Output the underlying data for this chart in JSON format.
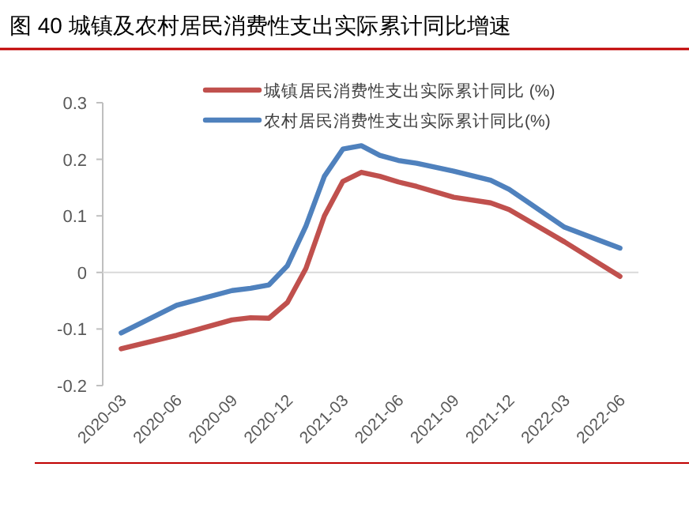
{
  "chart_data": {
    "type": "line",
    "title": "图 40  城镇及农村居民消费性支出实际累计同比增速",
    "x": [
      "2020-03",
      "2020-06",
      "2020-09",
      "2020-10",
      "2020-11",
      "2020-12",
      "2021-01",
      "2021-02",
      "2021-03",
      "2021-04",
      "2021-05",
      "2021-06",
      "2021-07",
      "2021-09",
      "2021-11",
      "2021-12",
      "2022-03",
      "2022-06"
    ],
    "series": [
      {
        "name": "城镇居民消费性支出实际累计同比 (%)",
        "color": "#c0504d",
        "values": [
          -0.135,
          -0.111,
          -0.084,
          -0.08,
          -0.081,
          -0.053,
          0.007,
          0.1,
          0.161,
          0.177,
          0.17,
          0.16,
          0.152,
          0.133,
          0.123,
          0.111,
          0.054,
          -0.007
        ]
      },
      {
        "name": "农村居民消费性支出实际累计同比(%)",
        "color": "#4f81bd",
        "values": [
          -0.107,
          -0.058,
          -0.032,
          -0.028,
          -0.022,
          0.012,
          0.082,
          0.17,
          0.218,
          0.224,
          0.207,
          0.198,
          0.193,
          0.179,
          0.163,
          0.147,
          0.08,
          0.043
        ]
      }
    ],
    "xlim": [
      "2020-02",
      "2022-07"
    ],
    "xticks": [
      "2020-03",
      "2020-06",
      "2020-09",
      "2020-12",
      "2021-03",
      "2021-06",
      "2021-09",
      "2021-12",
      "2022-03",
      "2022-06"
    ],
    "ylim": [
      -0.2,
      0.3
    ],
    "yticks": [
      -0.2,
      -0.1,
      0,
      0.1,
      0.2,
      0.3
    ],
    "legend": "top right"
  }
}
